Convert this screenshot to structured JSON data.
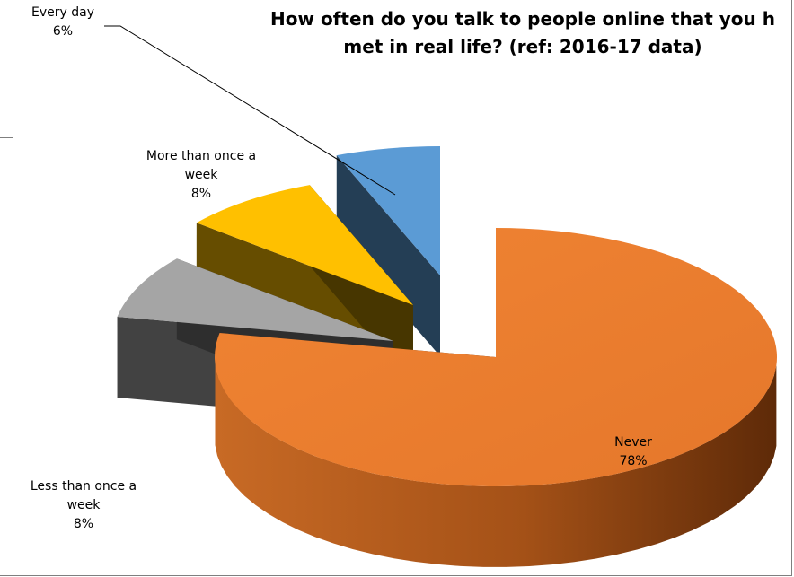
{
  "chart_data": {
    "type": "pie",
    "title": "How often do you talk to people online that you h\nmet in real life? (ref: 2016-17 data)",
    "categories": [
      "Never",
      "Less than once a week",
      "More than once a week",
      "Every day"
    ],
    "values": [
      78,
      8,
      8,
      6
    ],
    "labels": [
      {
        "name": "Never",
        "value": "78%"
      },
      {
        "name": "Less than once a week",
        "value": "8%"
      },
      {
        "name": "More than once a week",
        "value": "8%"
      },
      {
        "name": "Every day",
        "value": "6%"
      }
    ],
    "colors": {
      "Never": "#ED7D31",
      "Less than once a week": "#A5A5A5",
      "More than once a week": "#FFC000",
      "Every day": "#5B9BD5"
    },
    "style": "3d-exploded",
    "legend": "none"
  }
}
